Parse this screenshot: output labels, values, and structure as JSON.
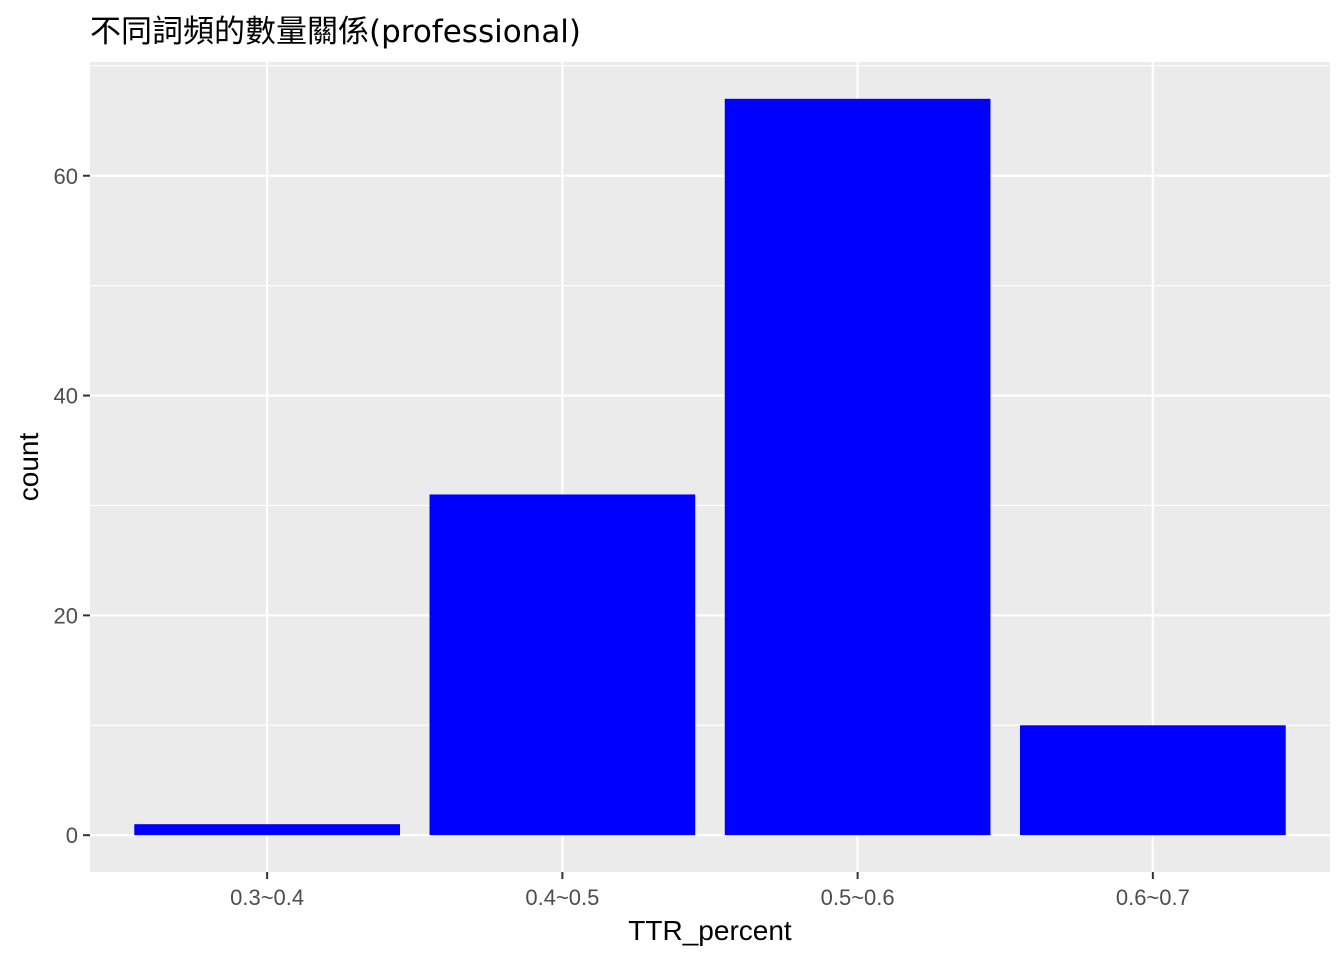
{
  "chart_data": {
    "type": "bar",
    "title": "不同詞頻的數量關係(professional)",
    "xlabel": "TTR_percent",
    "ylabel": "count",
    "categories": [
      "0.3~0.4",
      "0.4~0.5",
      "0.5~0.6",
      "0.6~0.7"
    ],
    "values": [
      1,
      31,
      67,
      10
    ],
    "ylim": [
      -3.35,
      70.35
    ],
    "y_ticks": [
      0,
      20,
      40,
      60
    ],
    "grid": true,
    "legend": "none",
    "colors": {
      "bar": "#0000ff",
      "panel": "#ebebeb",
      "grid": "#ffffff",
      "tick_text": "#4d4d4d",
      "tick_mark": "#333333"
    }
  }
}
